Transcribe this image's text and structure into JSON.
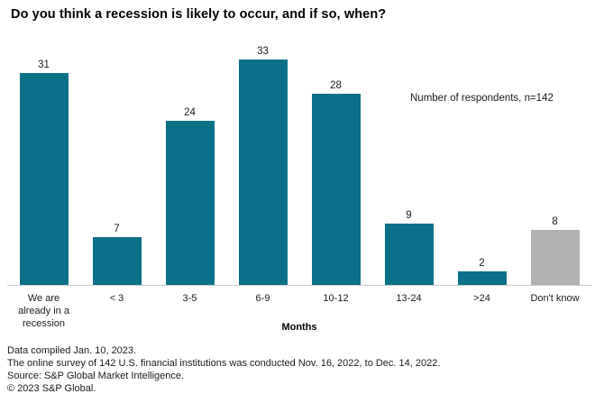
{
  "title": "Do you think a recession is likely to occur, and if so, when?",
  "annotation": "Number of respondents, n=142",
  "axis_title": "Months",
  "colors": {
    "bar_teal": "#0a7189",
    "bar_gray": "#b1b1b1",
    "axis_line": "#c9c9c9"
  },
  "footnotes": {
    "line1": "Data compiled Jan. 10, 2023.",
    "line2": "The online survey of 142 U.S. financial institutions was conducted Nov. 16, 2022, to Dec. 14, 2022.",
    "line3": "Source: S&P Global Market Intelligence.",
    "line4": "© 2023 S&P Global."
  },
  "chart_data": {
    "type": "bar",
    "title": "Do you think a recession is likely to occur, and if so, when?",
    "categories": [
      "We are\nalready in a\nrecession",
      "< 3",
      "3-5",
      "6-9",
      "10-12",
      "13-24",
      ">24",
      "Don't know"
    ],
    "values": [
      31,
      7,
      24,
      33,
      28,
      9,
      2,
      8
    ],
    "bar_colors": [
      "#0a7189",
      "#0a7189",
      "#0a7189",
      "#0a7189",
      "#0a7189",
      "#0a7189",
      "#0a7189",
      "#b1b1b1"
    ],
    "value_labels": true,
    "xlabel": "Months",
    "ylabel": "",
    "ylim": [
      0,
      36.4
    ],
    "grid": false,
    "legend": "none",
    "annotation": "Number of respondents, n=142"
  }
}
